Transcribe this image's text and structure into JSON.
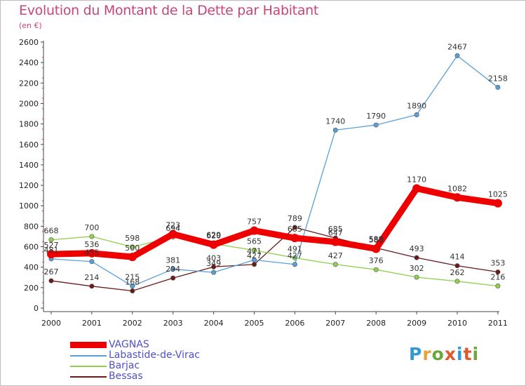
{
  "header": {
    "title": "Evolution du Montant de la Dette par Habitant",
    "unit": "(en €)"
  },
  "logo": {
    "text": "Proxiti",
    "colors": [
      "#2e9ad6",
      "#e8a23a",
      "#6aa83c",
      "#e05a2e",
      "#2e9ad6",
      "#e05a2e",
      "#6aa83c"
    ]
  },
  "chart_data": {
    "type": "line",
    "title": "Evolution du Montant de la Dette par Habitant",
    "subtitle": "(en €)",
    "categories": [
      "2000",
      "2001",
      "2002",
      "2003",
      "2004",
      "2005",
      "2006",
      "2007",
      "2008",
      "2009",
      "2010",
      "2011"
    ],
    "ylim": [
      0,
      2600
    ],
    "yticks": [
      0,
      200,
      400,
      600,
      800,
      1000,
      1200,
      1400,
      1600,
      1800,
      2000,
      2200,
      2400,
      2600
    ],
    "grid": false,
    "legend_position": "bottom-left",
    "series": [
      {
        "name": "VAGNAS",
        "color": "#ee0000",
        "values": [
          527,
          536,
          500,
          723,
          620,
          757,
          685,
          647,
          580,
          1170,
          1082,
          1025
        ]
      },
      {
        "name": "Labastide-de-Virac",
        "color": "#5aa0d8",
        "values": [
          481,
          455,
          215,
          381,
          349,
          471,
          427,
          1740,
          1790,
          1890,
          2467,
          2158
        ]
      },
      {
        "name": "Barjac",
        "color": "#8fd14f",
        "values": [
          668,
          700,
          598,
          694,
          629,
          565,
          491,
          427,
          376,
          302,
          262,
          216
        ]
      },
      {
        "name": "Bessas",
        "color": "#6b1a1a",
        "values": [
          267,
          214,
          168,
          294,
          403,
          427,
          789,
          685,
          588,
          493,
          414,
          353
        ]
      }
    ]
  }
}
